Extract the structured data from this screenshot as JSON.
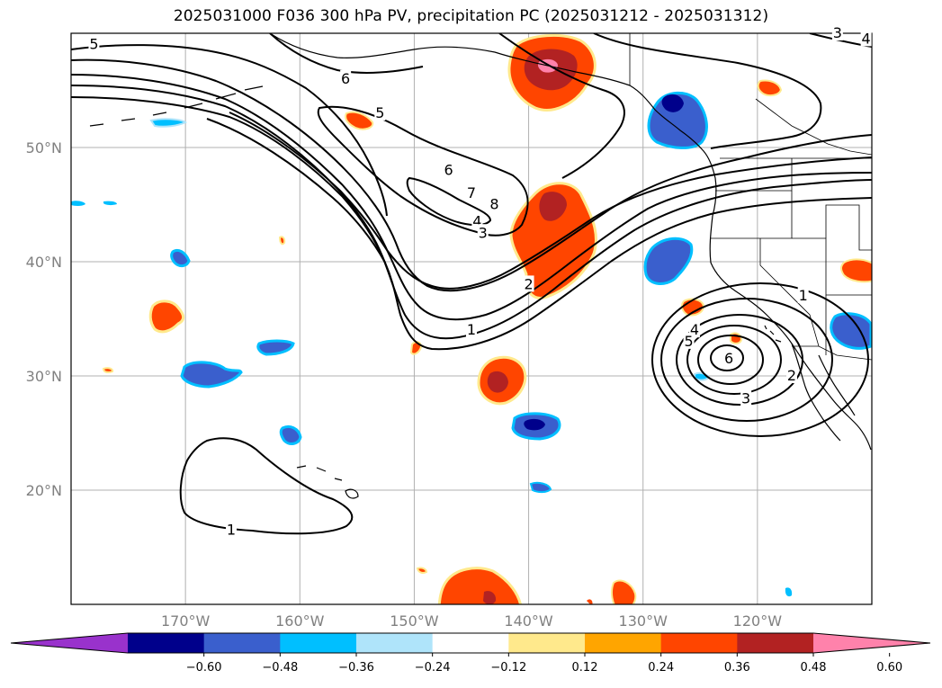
{
  "title": "2025031000 F036 300 hPa PV, precipitation PC (2025031212 - 2025031312)",
  "map": {
    "lon_range": [
      -180,
      -110
    ],
    "lat_range": [
      10,
      60
    ],
    "lat_ticks": [
      {
        "value": 20,
        "label": "20°N"
      },
      {
        "value": 30,
        "label": "30°N"
      },
      {
        "value": 40,
        "label": "40°N"
      },
      {
        "value": 50,
        "label": "50°N"
      }
    ],
    "lon_ticks": [
      {
        "value": -170,
        "label": "170°W"
      },
      {
        "value": -160,
        "label": "160°W"
      },
      {
        "value": -150,
        "label": "150°W"
      },
      {
        "value": -140,
        "label": "140°W"
      },
      {
        "value": -130,
        "label": "130°W"
      },
      {
        "value": -120,
        "label": "120°W"
      }
    ],
    "gridlines": true,
    "contour_labels": [
      {
        "text": "5",
        "lon": -178,
        "lat": 59
      },
      {
        "text": "6",
        "lon": -156,
        "lat": 56
      },
      {
        "text": "5",
        "lon": -153,
        "lat": 53
      },
      {
        "text": "6",
        "lon": -147,
        "lat": 48
      },
      {
        "text": "7",
        "lon": -145,
        "lat": 46
      },
      {
        "text": "8",
        "lon": -143,
        "lat": 45
      },
      {
        "text": "4",
        "lon": -144.5,
        "lat": 43.5
      },
      {
        "text": "3",
        "lon": -144,
        "lat": 42.5
      },
      {
        "text": "2",
        "lon": -140,
        "lat": 38
      },
      {
        "text": "1",
        "lon": -145,
        "lat": 34
      },
      {
        "text": "1",
        "lon": -166,
        "lat": 16.5
      },
      {
        "text": "1",
        "lon": -116,
        "lat": 37
      },
      {
        "text": "4",
        "lon": -125.5,
        "lat": 34
      },
      {
        "text": "5",
        "lon": -126,
        "lat": 33
      },
      {
        "text": "6",
        "lon": -122.5,
        "lat": 31.5
      },
      {
        "text": "2",
        "lon": -117,
        "lat": 30
      },
      {
        "text": "3",
        "lon": -121,
        "lat": 28
      },
      {
        "text": "4",
        "lon": -110.5,
        "lat": 59.5
      },
      {
        "text": "3",
        "lon": -113,
        "lat": 60
      }
    ]
  },
  "colorbar": {
    "colors": [
      "#9932cc",
      "#00008b",
      "#3a5fcd",
      "#00bfff",
      "#afe4fa",
      "#ffffff",
      "#ffe98c",
      "#ffa500",
      "#ff4500",
      "#b22222",
      "#ff82ab"
    ],
    "tick_labels": [
      "−0.60",
      "−0.48",
      "−0.36",
      "−0.24",
      "−0.12",
      "0.12",
      "0.24",
      "0.36",
      "0.48",
      "0.60"
    ]
  }
}
